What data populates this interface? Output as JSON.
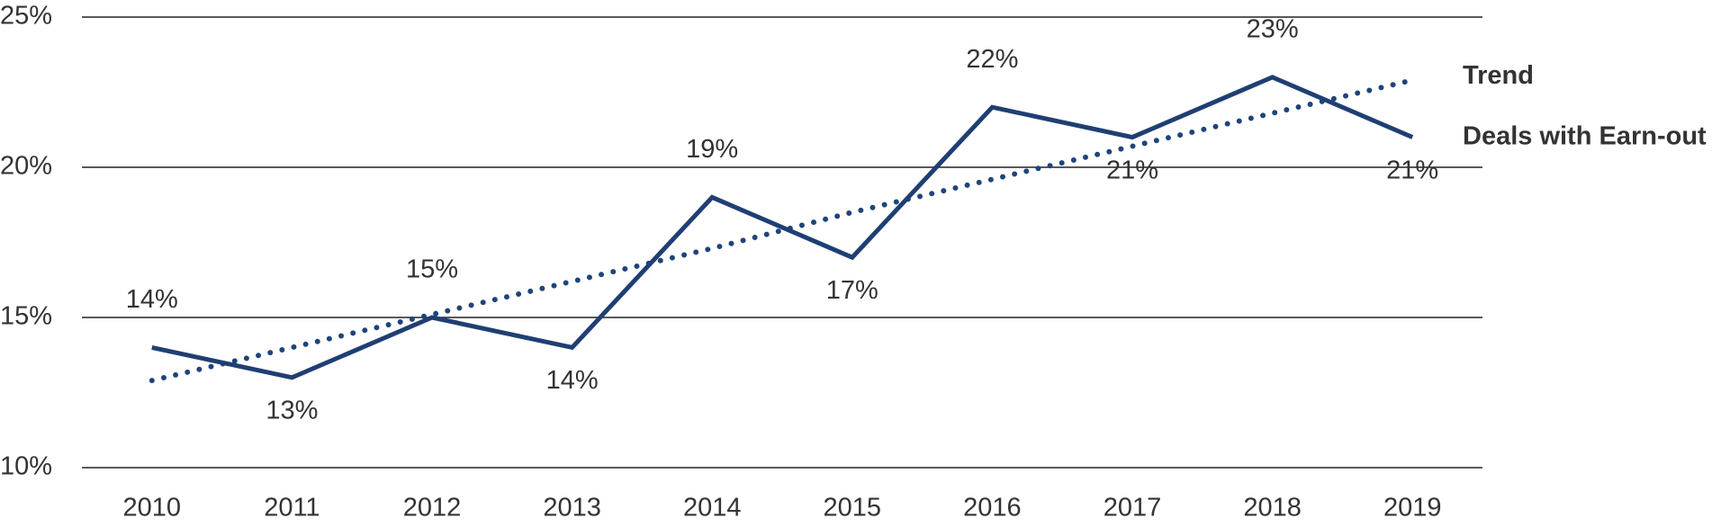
{
  "chart_data": {
    "type": "line",
    "categories": [
      "2010",
      "2011",
      "2012",
      "2013",
      "2014",
      "2015",
      "2016",
      "2017",
      "2018",
      "2019"
    ],
    "series": [
      {
        "name": "Trend",
        "color": "#1f447a",
        "style": "dotted",
        "values": [
          12.9,
          14.0,
          15.1,
          16.2,
          17.3,
          18.5,
          19.6,
          20.7,
          21.8,
          22.9
        ]
      },
      {
        "name": "Deals with Earn-out",
        "color": "#1f3f73",
        "style": "solid",
        "values": [
          14,
          13,
          15,
          14,
          19,
          17,
          22,
          21,
          23,
          21
        ],
        "value_labels": [
          "14%",
          "13%",
          "15%",
          "14%",
          "19%",
          "17%",
          "22%",
          "21%",
          "23%",
          "21%"
        ]
      }
    ],
    "ylim": [
      10,
      25
    ],
    "yticks": [
      {
        "value": 10,
        "label": "10%"
      },
      {
        "value": 15,
        "label": "15%"
      },
      {
        "value": 20,
        "label": "20%"
      },
      {
        "value": 25,
        "label": "25%"
      }
    ],
    "grid": true
  }
}
